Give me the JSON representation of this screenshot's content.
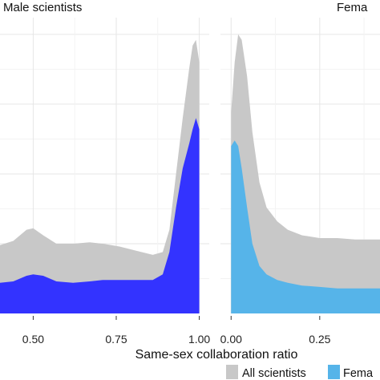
{
  "chart_data": [
    {
      "type": "area",
      "title": "Male scientists",
      "series": [
        {
          "name": "All scientists",
          "color": "#c8c8c8",
          "points": [
            [
              0.4,
              0.245
            ],
            [
              0.44,
              0.26
            ],
            [
              0.48,
              0.3
            ],
            [
              0.5,
              0.305
            ],
            [
              0.53,
              0.28
            ],
            [
              0.57,
              0.25
            ],
            [
              0.62,
              0.25
            ],
            [
              0.67,
              0.255
            ],
            [
              0.71,
              0.25
            ],
            [
              0.76,
              0.24
            ],
            [
              0.81,
              0.225
            ],
            [
              0.86,
              0.21
            ],
            [
              0.89,
              0.22
            ],
            [
              0.91,
              0.3
            ],
            [
              0.93,
              0.5
            ],
            [
              0.95,
              0.7
            ],
            [
              0.97,
              0.88
            ],
            [
              0.98,
              0.96
            ],
            [
              0.99,
              0.98
            ],
            [
              1.0,
              0.9
            ]
          ]
        },
        {
          "name": "Male scientists",
          "color": "#3333ff",
          "points": [
            [
              0.4,
              0.11
            ],
            [
              0.44,
              0.115
            ],
            [
              0.48,
              0.135
            ],
            [
              0.5,
              0.14
            ],
            [
              0.53,
              0.135
            ],
            [
              0.57,
              0.115
            ],
            [
              0.62,
              0.11
            ],
            [
              0.67,
              0.115
            ],
            [
              0.71,
              0.12
            ],
            [
              0.76,
              0.12
            ],
            [
              0.81,
              0.12
            ],
            [
              0.86,
              0.12
            ],
            [
              0.89,
              0.14
            ],
            [
              0.91,
              0.22
            ],
            [
              0.93,
              0.38
            ],
            [
              0.95,
              0.52
            ],
            [
              0.97,
              0.61
            ],
            [
              0.98,
              0.66
            ],
            [
              0.99,
              0.7
            ],
            [
              1.0,
              0.66
            ]
          ]
        }
      ],
      "xlim": [
        0.4,
        1.03
      ],
      "ylim": [
        0,
        1.06
      ],
      "x_ticks": [
        {
          "value": 0.5,
          "label": "0.50"
        },
        {
          "value": 0.75,
          "label": "0.75"
        },
        {
          "value": 1.0,
          "label": "1.00"
        }
      ]
    },
    {
      "type": "area",
      "title": "Fema",
      "series": [
        {
          "name": "All scientists",
          "color": "#c8c8c8",
          "points": [
            [
              0.0,
              0.72
            ],
            [
              0.01,
              0.9
            ],
            [
              0.02,
              1.0
            ],
            [
              0.03,
              0.98
            ],
            [
              0.045,
              0.85
            ],
            [
              0.06,
              0.65
            ],
            [
              0.08,
              0.47
            ],
            [
              0.1,
              0.38
            ],
            [
              0.13,
              0.33
            ],
            [
              0.16,
              0.3
            ],
            [
              0.2,
              0.28
            ],
            [
              0.25,
              0.27
            ],
            [
              0.3,
              0.27
            ],
            [
              0.35,
              0.265
            ],
            [
              0.42,
              0.265
            ]
          ]
        },
        {
          "name": "Fema",
          "color": "#56b4e9",
          "points": [
            [
              0.0,
              0.6
            ],
            [
              0.01,
              0.62
            ],
            [
              0.02,
              0.6
            ],
            [
              0.03,
              0.52
            ],
            [
              0.045,
              0.38
            ],
            [
              0.06,
              0.25
            ],
            [
              0.08,
              0.17
            ],
            [
              0.1,
              0.14
            ],
            [
              0.13,
              0.12
            ],
            [
              0.16,
              0.11
            ],
            [
              0.2,
              0.1
            ],
            [
              0.25,
              0.095
            ],
            [
              0.3,
              0.09
            ],
            [
              0.35,
              0.09
            ],
            [
              0.42,
              0.09
            ]
          ]
        }
      ],
      "xlim": [
        -0.03,
        0.42
      ],
      "ylim": [
        0,
        1.06
      ],
      "x_ticks": [
        {
          "value": 0.0,
          "label": "0.00"
        },
        {
          "value": 0.25,
          "label": "0.25"
        }
      ]
    }
  ],
  "xlabel": "Same-sex collaboration ratio",
  "legend": {
    "placement": "bottom",
    "entries": [
      {
        "label": "All scientists",
        "color": "#c8c8c8"
      },
      {
        "label": "Fema",
        "color": "#56b4e9"
      }
    ]
  },
  "grid": true
}
